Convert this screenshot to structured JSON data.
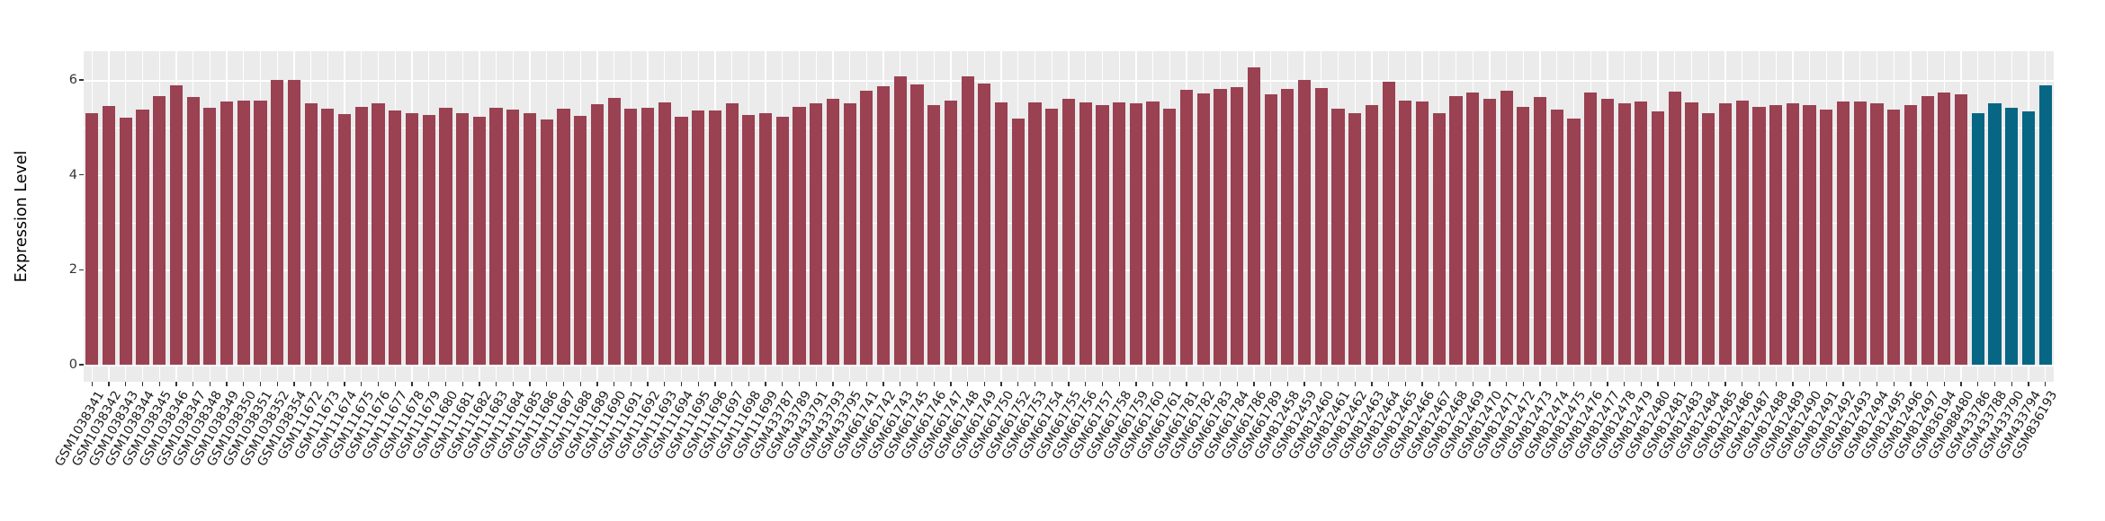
{
  "figure": {
    "background_color": "#FFFFFF"
  },
  "chart_data": {
    "type": "bar",
    "title": "",
    "xlabel": "",
    "ylabel": "Expression Level",
    "ylim": [
      0,
      6.6
    ],
    "yticks": [
      0,
      2,
      4,
      6
    ],
    "yticks_minor": [
      1,
      3,
      5
    ],
    "grid": "white major and minor horizontal gridlines plus white vertical gridline per category on gray panel",
    "legend": "none",
    "panel_background": "#EBEBEB",
    "grid_color": "#FFFFFF",
    "tick_color": "#333333",
    "axis_text_color": "#333333",
    "bar_color_default": "#9A4152",
    "bar_color_highlight": "#086685",
    "highlight_categories": [
      "GSM433786",
      "GSM433788",
      "GSM433790",
      "GSM433794",
      "GSM836193"
    ],
    "categories": [
      "GSM1038341",
      "GSM1038342",
      "GSM1038343",
      "GSM1038344",
      "GSM1038345",
      "GSM1038346",
      "GSM1038347",
      "GSM1038348",
      "GSM1038349",
      "GSM1038350",
      "GSM1038351",
      "GSM1038352",
      "GSM1038354",
      "GSM111672",
      "GSM111673",
      "GSM111674",
      "GSM111675",
      "GSM111676",
      "GSM111677",
      "GSM111678",
      "GSM111679",
      "GSM111680",
      "GSM111681",
      "GSM111682",
      "GSM111683",
      "GSM111684",
      "GSM111685",
      "GSM111686",
      "GSM111687",
      "GSM111688",
      "GSM111689",
      "GSM111690",
      "GSM111691",
      "GSM111692",
      "GSM111693",
      "GSM111694",
      "GSM111695",
      "GSM111696",
      "GSM111697",
      "GSM111698",
      "GSM111699",
      "GSM433787",
      "GSM433789",
      "GSM433791",
      "GSM433793",
      "GSM433795",
      "GSM661741",
      "GSM661742",
      "GSM661743",
      "GSM661745",
      "GSM661746",
      "GSM661747",
      "GSM661748",
      "GSM661749",
      "GSM661750",
      "GSM661752",
      "GSM661753",
      "GSM661754",
      "GSM661755",
      "GSM661756",
      "GSM661757",
      "GSM661758",
      "GSM661759",
      "GSM661760",
      "GSM661761",
      "GSM661781",
      "GSM661782",
      "GSM661783",
      "GSM661784",
      "GSM661786",
      "GSM661789",
      "GSM812458",
      "GSM812459",
      "GSM812460",
      "GSM812461",
      "GSM812462",
      "GSM812463",
      "GSM812464",
      "GSM812465",
      "GSM812466",
      "GSM812467",
      "GSM812468",
      "GSM812469",
      "GSM812470",
      "GSM812471",
      "GSM812472",
      "GSM812473",
      "GSM812474",
      "GSM812475",
      "GSM812476",
      "GSM812477",
      "GSM812478",
      "GSM812479",
      "GSM812480",
      "GSM812481",
      "GSM812483",
      "GSM812484",
      "GSM812485",
      "GSM812486",
      "GSM812487",
      "GSM812488",
      "GSM812489",
      "GSM812490",
      "GSM812491",
      "GSM812492",
      "GSM812493",
      "GSM812494",
      "GSM812495",
      "GSM812496",
      "GSM812497",
      "GSM836194",
      "GSM988480",
      "GSM433786",
      "GSM433788",
      "GSM433790",
      "GSM433794",
      "GSM836193"
    ],
    "values": [
      5.3,
      5.46,
      5.2,
      5.38,
      5.66,
      5.88,
      5.64,
      5.41,
      5.55,
      5.57,
      5.57,
      6.0,
      6.0,
      5.5,
      5.39,
      5.28,
      5.43,
      5.5,
      5.36,
      5.3,
      5.26,
      5.41,
      5.3,
      5.22,
      5.41,
      5.38,
      5.31,
      5.16,
      5.4,
      5.25,
      5.49,
      5.62,
      5.4,
      5.42,
      5.52,
      5.23,
      5.35,
      5.36,
      5.5,
      5.26,
      5.31,
      5.23,
      5.43,
      5.5,
      5.61,
      5.5,
      5.78,
      5.86,
      6.08,
      5.91,
      5.47,
      5.56,
      6.07,
      5.93,
      5.52,
      5.19,
      5.52,
      5.39,
      5.6,
      5.52,
      5.47,
      5.52,
      5.5,
      5.54,
      5.4,
      5.8,
      5.72,
      5.81,
      5.85,
      6.27,
      5.7,
      5.82,
      6.01,
      5.84,
      5.39,
      5.31,
      5.47,
      5.96,
      5.56,
      5.54,
      5.3,
      5.66,
      5.74,
      5.6,
      5.77,
      5.43,
      5.64,
      5.37,
      5.19,
      5.74,
      5.61,
      5.5,
      5.54,
      5.33,
      5.75,
      5.53,
      5.3,
      5.5,
      5.56,
      5.43,
      5.48,
      5.5,
      5.47,
      5.37,
      5.54,
      5.54,
      5.5,
      5.37,
      5.48,
      5.67,
      5.73,
      5.7,
      5.3,
      5.5,
      5.42,
      5.33,
      5.88
    ]
  }
}
